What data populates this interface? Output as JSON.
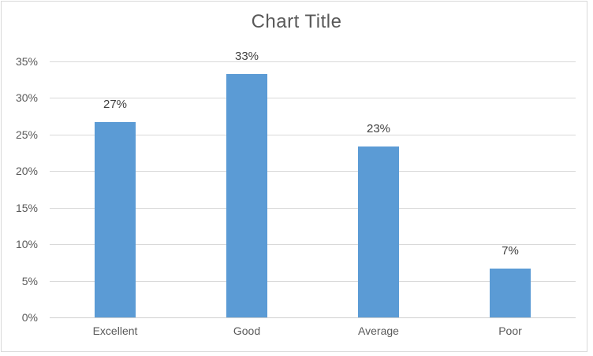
{
  "chart_data": {
    "type": "bar",
    "title": "Chart Title",
    "categories": [
      "Excellent",
      "Good",
      "Average",
      "Poor"
    ],
    "values": [
      26.67,
      33.33,
      23.33,
      6.67
    ],
    "data_labels": [
      "27%",
      "33%",
      "23%",
      "7%"
    ],
    "y_ticks": [
      "0%",
      "5%",
      "10%",
      "15%",
      "20%",
      "25%",
      "30%",
      "35%"
    ],
    "ylim": [
      0,
      35
    ],
    "y_tick_step": 5,
    "grid": true,
    "legend": "none",
    "colors": {
      "bar": "#5B9BD5",
      "gridline": "#D9D9D9",
      "axis_line": "#D0D0D0",
      "title": "#595959",
      "tick_label": "#595959",
      "data_label": "#404040",
      "frame_border": "#D9D9D9",
      "background": "#FFFFFF"
    }
  }
}
